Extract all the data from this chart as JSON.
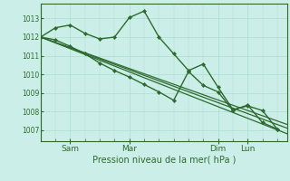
{
  "xlabel": "Pression niveau de la mer( hPa )",
  "bg_color": "#cceee8",
  "grid_color": "#aaddcc",
  "line_color": "#2d6a2d",
  "yticks": [
    1007,
    1008,
    1009,
    1010,
    1011,
    1012,
    1013
  ],
  "ylim": [
    1006.4,
    1013.8
  ],
  "xlim": [
    0,
    100
  ],
  "xtick_positions": [
    12,
    36,
    72,
    84
  ],
  "xtick_labels": [
    "Sam",
    "Mar",
    "Dim",
    "Lun"
  ],
  "series1": [
    [
      0,
      1012.0
    ],
    [
      6,
      1012.5
    ],
    [
      12,
      1012.65
    ],
    [
      18,
      1012.2
    ],
    [
      24,
      1011.9
    ],
    [
      30,
      1012.0
    ],
    [
      36,
      1013.05
    ],
    [
      42,
      1013.4
    ],
    [
      48,
      1012.0
    ],
    [
      54,
      1011.1
    ],
    [
      60,
      1010.2
    ],
    [
      66,
      1010.55
    ],
    [
      72,
      1009.3
    ],
    [
      78,
      1008.1
    ],
    [
      84,
      1008.3
    ],
    [
      90,
      1008.05
    ],
    [
      96,
      1007.05
    ]
  ],
  "series2": [
    [
      0,
      1012.0
    ],
    [
      6,
      1011.85
    ],
    [
      12,
      1011.5
    ],
    [
      18,
      1011.1
    ],
    [
      24,
      1010.6
    ],
    [
      30,
      1010.2
    ],
    [
      36,
      1009.85
    ],
    [
      42,
      1009.45
    ],
    [
      48,
      1009.05
    ],
    [
      54,
      1008.6
    ],
    [
      60,
      1010.15
    ],
    [
      66,
      1009.4
    ],
    [
      72,
      1009.05
    ],
    [
      78,
      1008.05
    ],
    [
      84,
      1008.35
    ],
    [
      90,
      1007.4
    ],
    [
      96,
      1007.05
    ]
  ],
  "series3": [
    [
      0,
      1012.0
    ],
    [
      100,
      1006.8
    ]
  ],
  "series4": [
    [
      0,
      1012.0
    ],
    [
      100,
      1007.1
    ]
  ],
  "series5": [
    [
      0,
      1012.0
    ],
    [
      100,
      1007.3
    ]
  ]
}
